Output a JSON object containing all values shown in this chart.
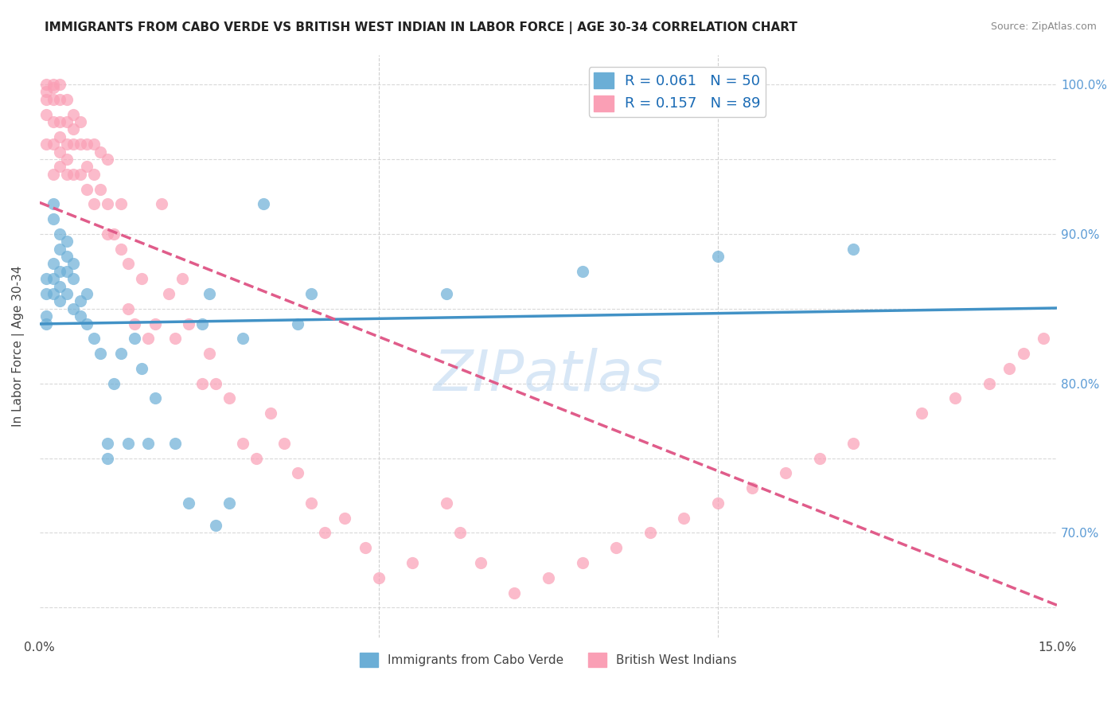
{
  "title": "IMMIGRANTS FROM CABO VERDE VS BRITISH WEST INDIAN IN LABOR FORCE | AGE 30-34 CORRELATION CHART",
  "source": "Source: ZipAtlas.com",
  "xlabel_bottom": "",
  "ylabel": "In Labor Force | Age 30-34",
  "xmin": 0.0,
  "xmax": 0.15,
  "ymin": 0.63,
  "ymax": 1.02,
  "xticks": [
    0.0,
    0.05,
    0.1,
    0.15
  ],
  "xticklabels": [
    "0.0%",
    "",
    "",
    "15.0%"
  ],
  "yticks": [
    0.65,
    0.7,
    0.75,
    0.8,
    0.85,
    0.9,
    0.95,
    1.0
  ],
  "yticklabels_right": [
    "",
    "70.0%",
    "",
    "80.0%",
    "",
    "90.0%",
    "",
    "100.0%"
  ],
  "legend_entries": [
    {
      "label": "R = 0.061   N = 50",
      "color": "#6baed6"
    },
    {
      "label": "R = 0.157   N = 89",
      "color": "#fa9fb5"
    }
  ],
  "cabo_verde_R": 0.061,
  "bwi_R": 0.157,
  "cabo_verde_color": "#6baed6",
  "bwi_color": "#fa9fb5",
  "cabo_verde_line_color": "#4292c6",
  "bwi_line_color": "#e05c8a",
  "watermark": "ZIPatlas",
  "cabo_verde_x": [
    0.001,
    0.001,
    0.001,
    0.001,
    0.002,
    0.002,
    0.002,
    0.002,
    0.002,
    0.003,
    0.003,
    0.003,
    0.003,
    0.003,
    0.004,
    0.004,
    0.004,
    0.004,
    0.005,
    0.005,
    0.005,
    0.006,
    0.006,
    0.007,
    0.007,
    0.008,
    0.009,
    0.01,
    0.01,
    0.011,
    0.012,
    0.013,
    0.014,
    0.015,
    0.016,
    0.017,
    0.02,
    0.022,
    0.024,
    0.025,
    0.026,
    0.028,
    0.03,
    0.033,
    0.038,
    0.04,
    0.06,
    0.08,
    0.1,
    0.12
  ],
  "cabo_verde_y": [
    0.87,
    0.86,
    0.845,
    0.84,
    0.92,
    0.91,
    0.88,
    0.87,
    0.86,
    0.9,
    0.89,
    0.875,
    0.865,
    0.855,
    0.895,
    0.885,
    0.875,
    0.86,
    0.88,
    0.87,
    0.85,
    0.855,
    0.845,
    0.86,
    0.84,
    0.83,
    0.82,
    0.76,
    0.75,
    0.8,
    0.82,
    0.76,
    0.83,
    0.81,
    0.76,
    0.79,
    0.76,
    0.72,
    0.84,
    0.86,
    0.705,
    0.72,
    0.83,
    0.92,
    0.84,
    0.86,
    0.86,
    0.875,
    0.885,
    0.89
  ],
  "bwi_x": [
    0.001,
    0.001,
    0.001,
    0.001,
    0.001,
    0.002,
    0.002,
    0.002,
    0.002,
    0.002,
    0.002,
    0.003,
    0.003,
    0.003,
    0.003,
    0.003,
    0.003,
    0.004,
    0.004,
    0.004,
    0.004,
    0.004,
    0.005,
    0.005,
    0.005,
    0.005,
    0.006,
    0.006,
    0.006,
    0.007,
    0.007,
    0.007,
    0.008,
    0.008,
    0.008,
    0.009,
    0.009,
    0.01,
    0.01,
    0.01,
    0.011,
    0.012,
    0.012,
    0.013,
    0.013,
    0.014,
    0.015,
    0.016,
    0.017,
    0.018,
    0.019,
    0.02,
    0.021,
    0.022,
    0.024,
    0.025,
    0.026,
    0.028,
    0.03,
    0.032,
    0.034,
    0.036,
    0.038,
    0.04,
    0.042,
    0.045,
    0.048,
    0.05,
    0.055,
    0.06,
    0.062,
    0.065,
    0.07,
    0.075,
    0.08,
    0.085,
    0.09,
    0.095,
    0.1,
    0.105,
    0.11,
    0.115,
    0.12,
    0.13,
    0.135,
    0.14,
    0.143,
    0.145,
    0.148
  ],
  "bwi_y": [
    1.0,
    0.995,
    0.99,
    0.98,
    0.96,
    1.0,
    0.998,
    0.99,
    0.975,
    0.96,
    0.94,
    1.0,
    0.99,
    0.975,
    0.965,
    0.955,
    0.945,
    0.99,
    0.975,
    0.96,
    0.95,
    0.94,
    0.98,
    0.97,
    0.96,
    0.94,
    0.975,
    0.96,
    0.94,
    0.96,
    0.945,
    0.93,
    0.96,
    0.94,
    0.92,
    0.955,
    0.93,
    0.95,
    0.92,
    0.9,
    0.9,
    0.92,
    0.89,
    0.88,
    0.85,
    0.84,
    0.87,
    0.83,
    0.84,
    0.92,
    0.86,
    0.83,
    0.87,
    0.84,
    0.8,
    0.82,
    0.8,
    0.79,
    0.76,
    0.75,
    0.78,
    0.76,
    0.74,
    0.72,
    0.7,
    0.71,
    0.69,
    0.67,
    0.68,
    0.72,
    0.7,
    0.68,
    0.66,
    0.67,
    0.68,
    0.69,
    0.7,
    0.71,
    0.72,
    0.73,
    0.74,
    0.75,
    0.76,
    0.78,
    0.79,
    0.8,
    0.81,
    0.82,
    0.83
  ]
}
